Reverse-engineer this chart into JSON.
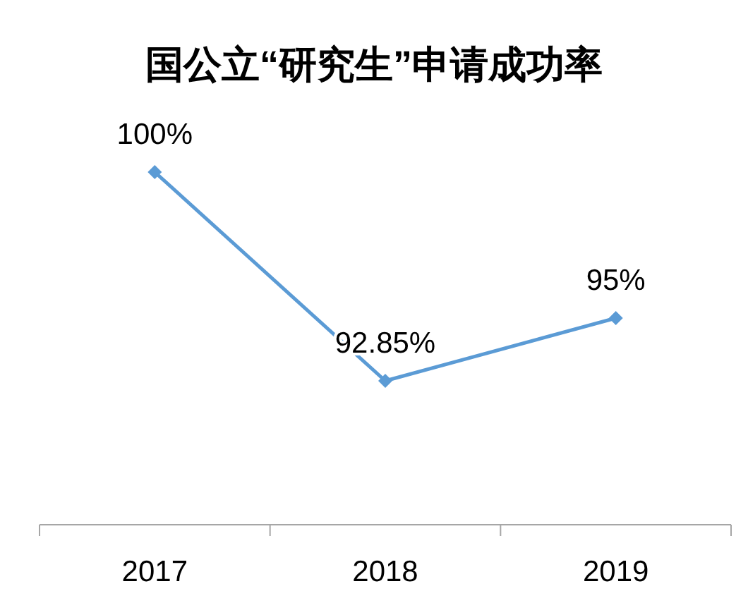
{
  "chart_data": {
    "type": "line",
    "title": "国公立“研究生”申请成功率",
    "categories": [
      "2017",
      "2018",
      "2019"
    ],
    "series": [
      {
        "color": "#5b9bd5",
        "values": [
          100,
          92.85,
          95
        ],
        "value_labels": [
          "100%",
          "92.85%",
          "95%"
        ]
      }
    ],
    "marker": "diamond",
    "line_style": "solid"
  }
}
